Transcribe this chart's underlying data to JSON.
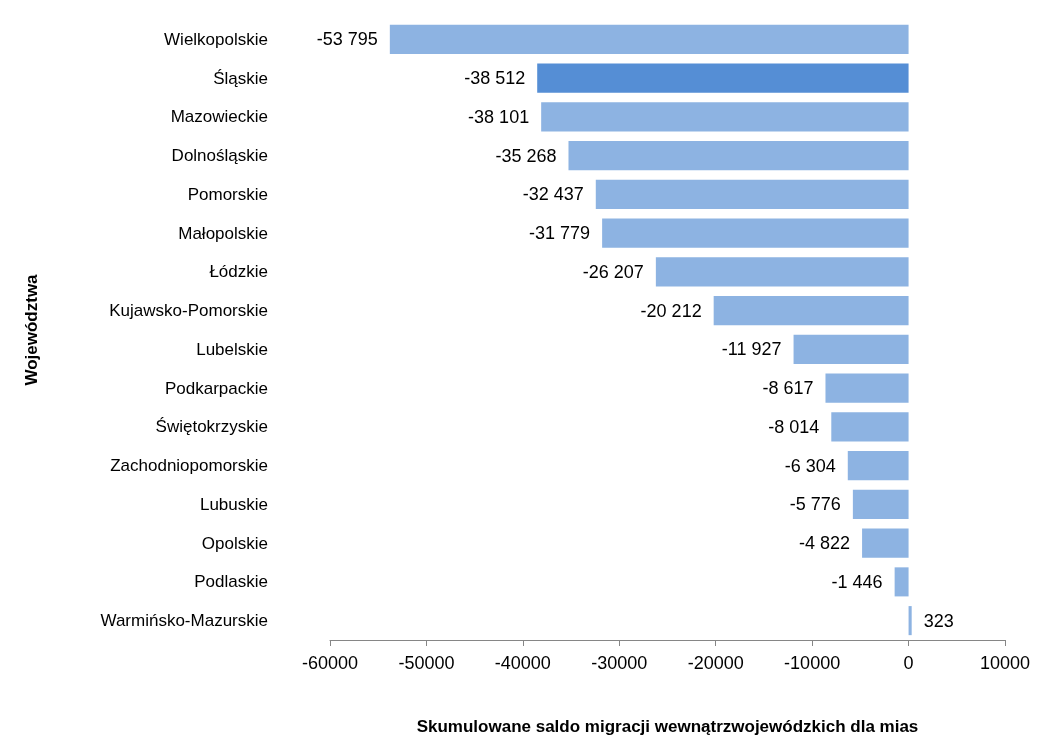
{
  "chart_data": {
    "type": "bar",
    "orientation": "horizontal",
    "ylabel": "Województwa",
    "xlabel": "Skumulowane saldo migracji wewnątrzwojewódzkich dla mias",
    "categories": [
      "Wielkopolskie",
      "Śląskie",
      "Mazowieckie",
      "Dolnośląskie",
      "Pomorskie",
      "Małopolskie",
      "Łódzkie",
      "Kujawsko-Pomorskie",
      "Lubelskie",
      "Podkarpackie",
      "Świętokrzyskie",
      "Zachodniopomorskie",
      "Lubuskie",
      "Opolskie",
      "Podlaskie",
      "Warmińsko-Mazurskie"
    ],
    "values": [
      -53795,
      -38512,
      -38101,
      -35268,
      -32437,
      -31779,
      -26207,
      -20212,
      -11927,
      -8617,
      -8014,
      -6304,
      -5776,
      -4822,
      -1446,
      323
    ],
    "value_labels": [
      "-53 795",
      "-38 512",
      "-38 101",
      "-35 268",
      "-32 437",
      "-31 779",
      "-26 207",
      "-20 212",
      "-11 927",
      "-8 617",
      "-8 014",
      "-6 304",
      "-5 776",
      "-4 822",
      "-1 446",
      "323"
    ],
    "colors": [
      "#8db3e2",
      "#558ed5",
      "#8db3e2",
      "#8db3e2",
      "#8db3e2",
      "#8db3e2",
      "#8db3e2",
      "#8db3e2",
      "#8db3e2",
      "#8db3e2",
      "#8db3e2",
      "#8db3e2",
      "#8db3e2",
      "#8db3e2",
      "#8db3e2",
      "#8db3e2"
    ],
    "xlim": [
      -60000,
      10000
    ],
    "xticks": [
      -60000,
      -50000,
      -40000,
      -30000,
      -20000,
      -10000,
      0,
      10000
    ]
  }
}
